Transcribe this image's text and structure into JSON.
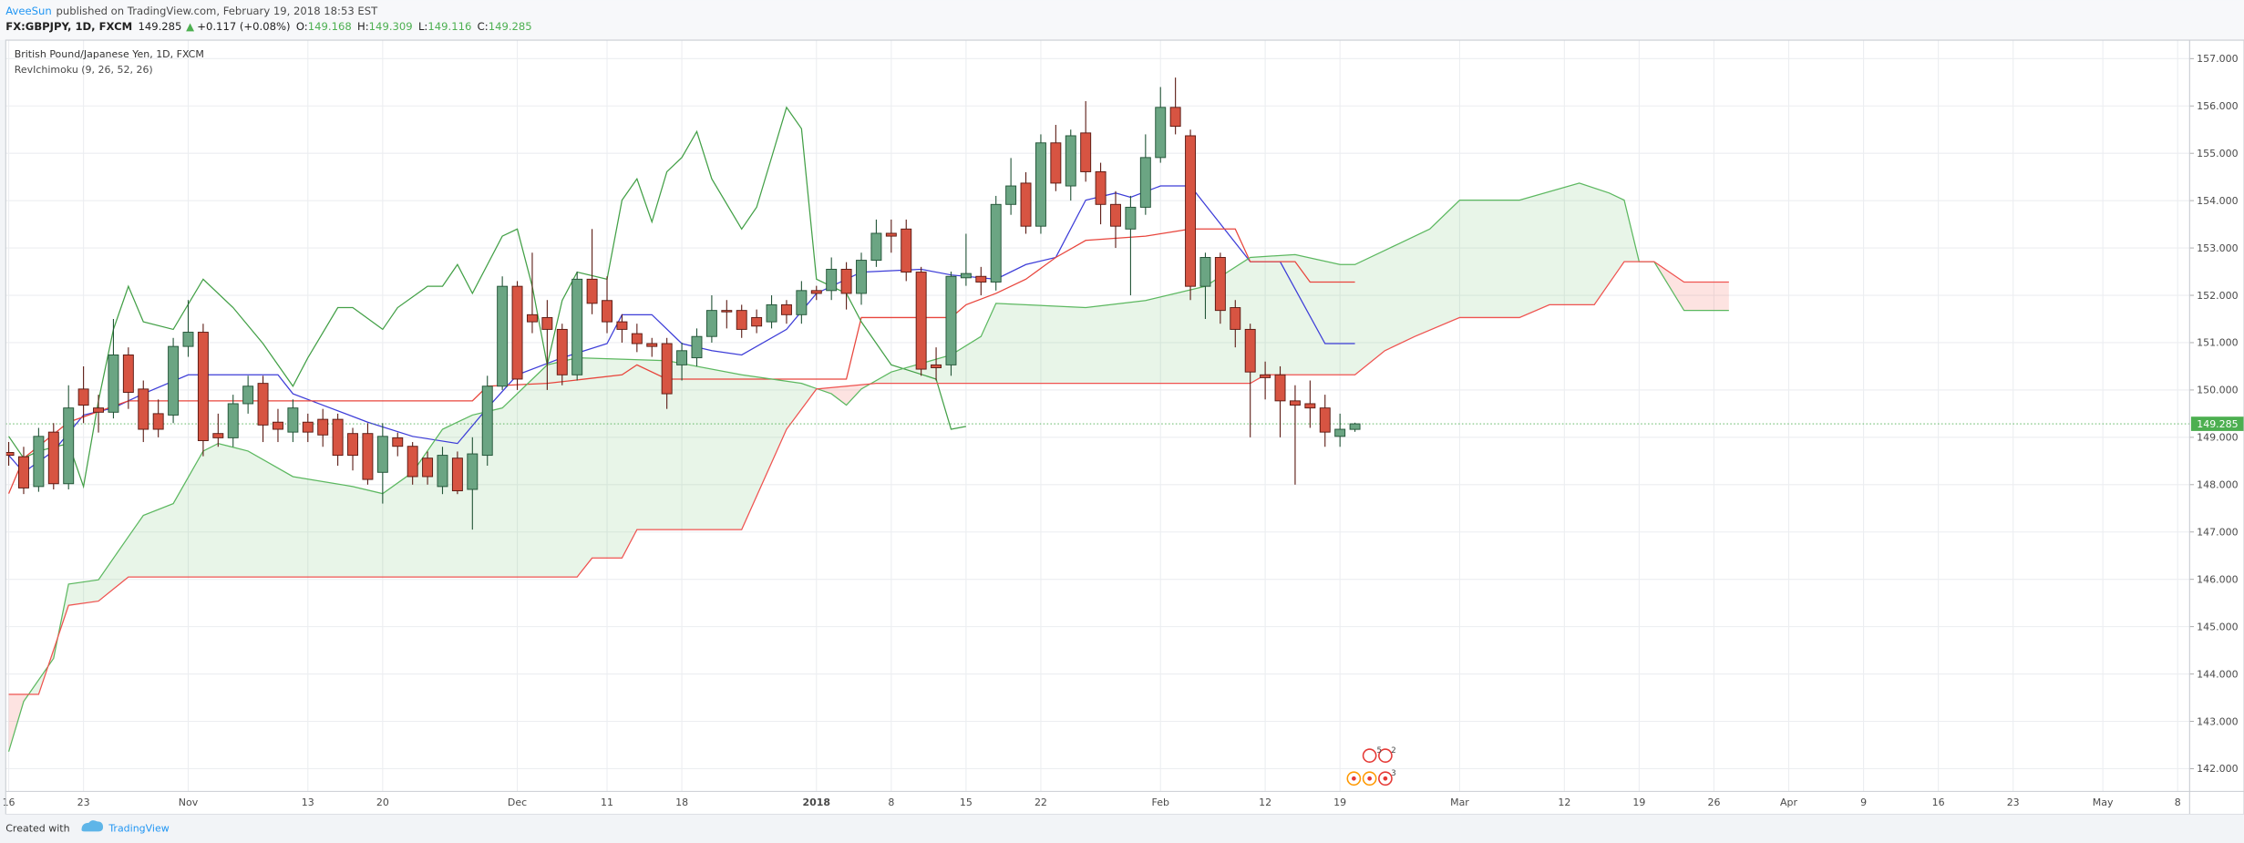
{
  "header": {
    "author": "AveeSun",
    "published": "published on TradingView.com, February 19, 2018 18:53 EST",
    "symbol": "FX:GBPJPY, 1D, FXCM",
    "last": "149.285",
    "arrow": "▲",
    "change": "+0.117 (+0.08%)",
    "quote": [
      {
        "label": "O:",
        "value": "149.168"
      },
      {
        "label": "H:",
        "value": "149.309"
      },
      {
        "label": "L:",
        "value": "149.116"
      },
      {
        "label": "C:",
        "value": "149.285"
      }
    ]
  },
  "chart_data": {
    "type": "candlestick",
    "title": "British Pound/Japanese Yen, 1D, FXCM",
    "subtitle": "RevIchimoku (9, 26, 52, 26)",
    "up_color": "#6ba583",
    "up_border": "#225437",
    "down_color": "#d75442",
    "down_border": "#5b1a13",
    "x": [
      0,
      1,
      2,
      3,
      4,
      5,
      6,
      7,
      8,
      9,
      10,
      11,
      12,
      13,
      14,
      15,
      16,
      17,
      18,
      19,
      20,
      21,
      22,
      23,
      24,
      25,
      26,
      27,
      28,
      29,
      30,
      31,
      32,
      33,
      34,
      35,
      36,
      37,
      38,
      39,
      40,
      41,
      42,
      43,
      44,
      45,
      46,
      47,
      48,
      49,
      50,
      51,
      52,
      53,
      54,
      55,
      56,
      57,
      58,
      59,
      60,
      61,
      62,
      63,
      64,
      65,
      66,
      67,
      68,
      69,
      70,
      71,
      72,
      73,
      74,
      75,
      76,
      77,
      78,
      79,
      80,
      81,
      82,
      83,
      84,
      85,
      86,
      87,
      88,
      89,
      90
    ],
    "open": [
      148.68,
      148.59,
      147.96,
      149.11,
      148.02,
      150.02,
      149.62,
      149.53,
      150.74,
      150.02,
      149.5,
      149.47,
      150.92,
      151.22,
      149.08,
      148.99,
      149.71,
      150.14,
      149.32,
      149.11,
      149.32,
      149.38,
      149.38,
      149.08,
      149.08,
      148.26,
      148.99,
      148.81,
      148.56,
      147.96,
      148.56,
      147.9,
      148.62,
      150.08,
      152.19,
      151.59,
      151.53,
      151.28,
      150.32,
      152.34,
      151.89,
      151.44,
      151.19,
      150.98,
      150.98,
      150.53,
      150.68,
      151.13,
      151.68,
      151.68,
      151.53,
      151.44,
      151.8,
      151.59,
      152.1,
      152.1,
      152.55,
      152.04,
      152.74,
      153.31,
      153.4,
      152.49,
      150.53,
      150.53,
      152.37,
      152.4,
      152.28,
      153.92,
      154.37,
      153.46,
      155.22,
      154.31,
      155.43,
      154.61,
      153.92,
      153.4,
      153.86,
      154.91,
      155.97,
      155.37,
      152.19,
      152.8,
      151.74,
      151.28,
      150.32,
      150.32,
      149.77,
      149.71,
      149.62,
      149.02,
      149.168
    ],
    "high": [
      148.9,
      148.8,
      149.2,
      149.3,
      150.1,
      150.5,
      149.9,
      151.5,
      150.9,
      150.2,
      149.8,
      151.1,
      151.9,
      151.4,
      149.5,
      149.9,
      150.3,
      150.3,
      149.6,
      149.8,
      149.5,
      149.6,
      149.5,
      149.2,
      149.3,
      149.3,
      149.1,
      148.9,
      148.7,
      148.8,
      148.7,
      149.0,
      150.3,
      152.4,
      152.3,
      152.9,
      151.9,
      151.4,
      152.5,
      153.4,
      152.4,
      151.6,
      151.4,
      151.1,
      151.1,
      151.0,
      151.3,
      152.0,
      151.9,
      151.8,
      151.7,
      152.0,
      151.9,
      152.3,
      152.2,
      152.8,
      152.7,
      152.9,
      153.6,
      153.6,
      153.6,
      152.6,
      150.9,
      152.5,
      153.3,
      152.6,
      154.1,
      154.9,
      154.6,
      155.4,
      155.6,
      155.5,
      156.1,
      154.8,
      154.2,
      154.1,
      155.4,
      156.4,
      156.6,
      155.5,
      152.9,
      152.9,
      151.9,
      151.4,
      150.6,
      150.5,
      150.1,
      150.2,
      149.9,
      149.5,
      149.309
    ],
    "low": [
      148.4,
      147.8,
      147.85,
      147.9,
      147.9,
      149.3,
      149.1,
      149.4,
      149.6,
      148.9,
      149.0,
      149.3,
      150.7,
      148.6,
      148.8,
      148.8,
      149.5,
      148.9,
      148.9,
      148.9,
      148.9,
      148.8,
      148.4,
      148.3,
      148.0,
      147.6,
      148.6,
      148.0,
      148.0,
      147.8,
      147.8,
      147.05,
      148.4,
      150.0,
      150.0,
      151.2,
      150.0,
      150.1,
      150.2,
      151.6,
      151.2,
      151.0,
      150.8,
      150.7,
      149.6,
      150.2,
      150.5,
      151.0,
      151.3,
      151.1,
      151.2,
      151.3,
      151.4,
      151.4,
      151.9,
      151.9,
      151.7,
      151.8,
      152.6,
      152.9,
      152.3,
      150.3,
      150.2,
      150.3,
      152.2,
      152.0,
      152.1,
      153.7,
      153.3,
      153.3,
      154.2,
      154.0,
      154.4,
      153.5,
      153.0,
      152.0,
      153.7,
      154.8,
      155.4,
      151.9,
      151.5,
      151.4,
      150.9,
      149.0,
      149.8,
      149.0,
      148.0,
      149.2,
      148.8,
      148.8,
      149.116
    ],
    "close": [
      148.62,
      147.93,
      149.02,
      148.02,
      149.62,
      149.68,
      149.53,
      150.74,
      149.95,
      149.17,
      149.17,
      150.92,
      151.22,
      148.93,
      148.99,
      149.71,
      150.08,
      149.26,
      149.17,
      149.62,
      149.11,
      149.05,
      148.62,
      148.62,
      148.11,
      149.02,
      148.81,
      148.17,
      148.17,
      148.62,
      147.87,
      148.65,
      150.08,
      152.19,
      150.23,
      151.44,
      151.28,
      150.32,
      152.34,
      151.83,
      151.44,
      151.28,
      150.98,
      150.92,
      149.92,
      150.83,
      151.13,
      151.68,
      151.65,
      151.28,
      151.35,
      151.8,
      151.59,
      152.1,
      152.04,
      152.55,
      152.04,
      152.74,
      153.31,
      153.25,
      152.49,
      150.44,
      150.47,
      152.4,
      152.46,
      152.28,
      153.92,
      154.31,
      153.46,
      155.22,
      154.37,
      155.37,
      154.61,
      153.92,
      153.46,
      153.86,
      154.91,
      155.97,
      155.57,
      152.19,
      152.8,
      151.68,
      151.28,
      150.38,
      150.26,
      149.77,
      149.68,
      149.62,
      149.11,
      149.17,
      149.285
    ],
    "series": [
      {
        "color": "#3d3dd8",
        "x": [
          0,
          1,
          3,
          5,
          7,
          9,
          12,
          18,
          19,
          21,
          24,
          27,
          30,
          32,
          34,
          37,
          40,
          41,
          43,
          45,
          47,
          49,
          52,
          54,
          57,
          61,
          63,
          66,
          68,
          70,
          72,
          74,
          75,
          77,
          79,
          83,
          85,
          88,
          90
        ],
        "values": [
          148.62,
          148.26,
          148.71,
          149.47,
          149.62,
          149.92,
          150.32,
          150.32,
          149.92,
          149.68,
          149.32,
          149.02,
          148.87,
          149.62,
          150.32,
          150.68,
          150.98,
          151.59,
          151.59,
          150.98,
          150.83,
          150.74,
          151.28,
          152.04,
          152.49,
          152.55,
          152.43,
          152.34,
          152.65,
          152.8,
          154.01,
          154.16,
          154.07,
          154.31,
          154.31,
          152.71,
          152.71,
          150.98,
          150.98
        ]
      },
      {
        "color": "#e8453c",
        "x": [
          0,
          1,
          4,
          8,
          31,
          32,
          36,
          41,
          42,
          44,
          56,
          57,
          63,
          64,
          66,
          68,
          70,
          72,
          76,
          79,
          82,
          83,
          86,
          87,
          90
        ],
        "values": [
          147.81,
          148.56,
          149.32,
          149.77,
          149.77,
          150.08,
          150.14,
          150.32,
          150.53,
          150.23,
          150.23,
          151.53,
          151.53,
          151.8,
          152.04,
          152.34,
          152.8,
          153.16,
          153.25,
          153.4,
          153.4,
          152.71,
          152.71,
          152.28,
          152.28
        ]
      },
      {
        "color": "#43a047",
        "x": [
          0,
          1,
          2,
          4,
          5,
          6,
          7,
          8,
          9,
          11,
          13,
          15,
          17,
          19,
          20,
          22,
          23,
          25,
          26,
          28,
          29,
          30,
          31,
          33,
          34,
          35,
          36,
          37,
          38,
          40,
          41,
          42,
          43,
          44,
          45,
          46,
          47,
          49,
          50,
          51,
          52,
          53,
          54,
          55,
          56,
          57,
          59,
          62,
          63,
          64
        ],
        "values": [
          149.02,
          148.56,
          148.71,
          148.87,
          147.96,
          149.77,
          151.28,
          152.19,
          151.44,
          151.28,
          152.34,
          151.74,
          150.98,
          150.08,
          150.68,
          151.74,
          151.74,
          151.28,
          151.74,
          152.19,
          152.19,
          152.65,
          152.04,
          153.25,
          153.4,
          152.19,
          150.53,
          151.89,
          152.49,
          152.34,
          154.01,
          154.46,
          153.55,
          154.61,
          154.91,
          155.46,
          154.46,
          153.4,
          153.86,
          154.91,
          155.97,
          155.52,
          152.34,
          152.19,
          152.04,
          151.44,
          150.53,
          150.23,
          149.17,
          149.23
        ]
      },
      {
        "color": "#5cb860",
        "fill": {
          "up": "rgba(76,175,80,0.13)",
          "down": "rgba(244,67,54,0.15)"
        },
        "x": [
          0,
          1,
          3,
          4,
          6,
          8,
          9,
          11,
          13,
          14,
          16,
          19,
          23,
          25,
          27,
          29,
          31,
          33,
          36,
          38,
          44,
          49,
          53,
          55,
          56,
          57,
          59,
          63,
          65,
          66,
          72,
          76,
          80,
          83,
          86,
          89,
          90,
          93,
          95,
          97,
          101,
          105,
          107,
          108,
          109,
          110,
          112,
          115
        ],
        "values": [
          142.36,
          143.42,
          144.33,
          145.9,
          145.99,
          146.9,
          147.35,
          147.6,
          148.71,
          148.87,
          148.71,
          148.17,
          147.96,
          147.81,
          148.26,
          149.17,
          149.47,
          149.62,
          150.53,
          150.68,
          150.62,
          150.32,
          150.14,
          149.92,
          149.68,
          150.02,
          150.38,
          150.74,
          151.13,
          151.83,
          151.74,
          151.89,
          152.19,
          152.8,
          152.86,
          152.65,
          152.65,
          153.1,
          153.4,
          154.01,
          154.01,
          154.37,
          154.16,
          154.01,
          152.71,
          152.71,
          151.68,
          151.68
        ]
      },
      {
        "color": "#ef5350",
        "x": [
          0,
          2,
          4,
          6,
          8,
          38,
          39,
          41,
          42,
          49,
          52,
          54,
          58,
          83,
          84,
          90,
          92,
          94,
          97,
          101,
          103,
          106,
          108,
          110,
          112,
          115
        ],
        "values": [
          143.57,
          143.57,
          145.45,
          145.54,
          146.05,
          146.05,
          146.45,
          146.45,
          147.05,
          147.05,
          149.17,
          150.02,
          150.14,
          150.14,
          150.32,
          150.32,
          150.83,
          151.13,
          151.53,
          151.53,
          151.8,
          151.8,
          152.71,
          152.71,
          152.28,
          152.28
        ]
      }
    ],
    "last_price": 149.285,
    "last_color": "#4caf50",
    "xlim": [
      -0.2,
      145.8
    ],
    "xticks": [
      {
        "value": 0,
        "label": "16"
      },
      {
        "value": 5,
        "label": "23"
      },
      {
        "value": 12,
        "label": "Nov"
      },
      {
        "value": 20,
        "label": "13"
      },
      {
        "value": 25,
        "label": "20"
      },
      {
        "value": 34,
        "label": "Dec"
      },
      {
        "value": 40,
        "label": "11"
      },
      {
        "value": 45,
        "label": "18"
      },
      {
        "value": 54,
        "label": "2018"
      },
      {
        "value": 59,
        "label": "8"
      },
      {
        "value": 64,
        "label": "15"
      },
      {
        "value": 69,
        "label": "22"
      },
      {
        "value": 77,
        "label": "Feb"
      },
      {
        "value": 84,
        "label": "12"
      },
      {
        "value": 89,
        "label": "19"
      },
      {
        "value": 97,
        "label": "Mar"
      },
      {
        "value": 104,
        "label": "12"
      },
      {
        "value": 109,
        "label": "19"
      },
      {
        "value": 114,
        "label": "26"
      },
      {
        "value": 119,
        "label": "Apr"
      },
      {
        "value": 124,
        "label": "9"
      },
      {
        "value": 129,
        "label": "16"
      },
      {
        "value": 134,
        "label": "23"
      },
      {
        "value": 140,
        "label": "May"
      },
      {
        "value": 145,
        "label": "8"
      }
    ],
    "ylim": [
      141.52,
      157.39
    ],
    "yticks": [
      {
        "value": 142,
        "label": "142.000"
      },
      {
        "value": 143,
        "label": "143.000"
      },
      {
        "value": 144,
        "label": "144.000"
      },
      {
        "value": 145,
        "label": "145.000"
      },
      {
        "value": 146,
        "label": "146.000"
      },
      {
        "value": 147,
        "label": "147.000"
      },
      {
        "value": 148,
        "label": "148.000"
      },
      {
        "value": 149,
        "label": "149.000"
      },
      {
        "value": 150,
        "label": "150.000"
      },
      {
        "value": 151,
        "label": "151.000"
      },
      {
        "value": 152,
        "label": "152.000"
      },
      {
        "value": 153,
        "label": "153.000"
      },
      {
        "value": 154,
        "label": "154.000"
      },
      {
        "value": 155,
        "label": "155.000"
      },
      {
        "value": 156,
        "label": "156.000"
      },
      {
        "value": 157,
        "label": "157.000"
      }
    ],
    "grid": true,
    "events": [
      "5",
      "2",
      "3"
    ]
  },
  "footer": {
    "created": "Created with",
    "brand": "TradingView"
  }
}
